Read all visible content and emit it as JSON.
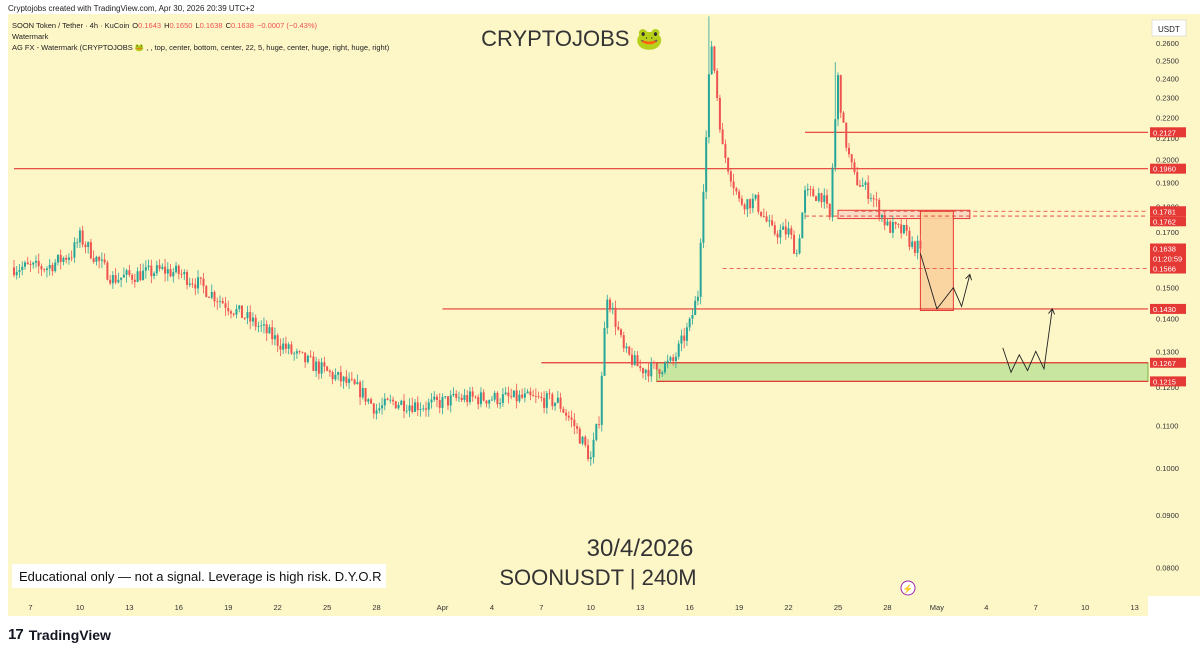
{
  "attribution": "Cryptojobs created with TradingView.com, Apr 30, 2026 20:39 UTC+2",
  "legend": {
    "symbol_line": "SOON Token / Tether · 4h · KuCoin",
    "o_label": "O",
    "o_value": "0.1643",
    "h_label": "H",
    "h_value": "0.1650",
    "l_label": "L",
    "l_value": "0.1638",
    "c_label": "C",
    "c_value": "0.1638",
    "change": "−0.0007 (−0.43%)",
    "indicator1": "Watermark",
    "indicator2": "AG FX - Watermark (CRYPTOJOBS 🐸 , , top, center, bottom, center, 22, 5, huge, center, huge, right, huge, right)"
  },
  "watermark": {
    "brand": "CRYPTOJOBS 🐸",
    "date": "30/4/2026",
    "pair": "SOONUSDT | 240M"
  },
  "disclaimer": "Educational only — not a signal. Leverage is high risk. D.Y.O.R",
  "currency_label": "USDT",
  "footer_brand": "TradingView",
  "colors": {
    "bg": "#fdf6c7",
    "up": "#26a69a",
    "down": "#ef5350",
    "level": "#e53935",
    "zone_green": "#c8e6a0",
    "zone_orange": "#fbd29c"
  },
  "chart_data": {
    "type": "candlestick",
    "symbol": "SOONUSDT",
    "timeframe": "240M",
    "ylim": [
      0.075,
      0.2775
    ],
    "y_ticks": [
      "0.0800",
      "0.0900",
      "0.1000",
      "0.1100",
      "0.1200",
      "0.1300",
      "0.1400",
      "0.1500",
      "0.1600",
      "0.1700",
      "0.1800",
      "0.1900",
      "0.2000",
      "0.2100",
      "0.2200",
      "0.2300",
      "0.2400",
      "0.2500",
      "0.2600",
      "0.2700"
    ],
    "x_ticks": [
      "7",
      "10",
      "13",
      "16",
      "19",
      "22",
      "25",
      "28",
      "Apr",
      "4",
      "7",
      "10",
      "13",
      "16",
      "19",
      "22",
      "25",
      "28",
      "May",
      "4",
      "7",
      "10",
      "13"
    ],
    "price_markers": [
      {
        "label": "0.2127",
        "color": "#e53935"
      },
      {
        "label": "0.1960",
        "color": "#e53935"
      },
      {
        "label": "0.1781",
        "color": "#e53935"
      },
      {
        "label": "0.1762",
        "color": "#e53935"
      },
      {
        "label": "0.1638",
        "color": "#e53935"
      },
      {
        "label": "01:20:59",
        "color": "#e53935"
      },
      {
        "label": "0.1638",
        "color": "#333333"
      },
      {
        "label": "0.1566",
        "color": "#e53935"
      },
      {
        "label": "0.1430",
        "color": "#e53935"
      },
      {
        "label": "0.1267",
        "color": "#e53935"
      },
      {
        "label": "0.1215",
        "color": "#e53935"
      }
    ],
    "levels": [
      {
        "price": 0.196,
        "from": "Mar 6",
        "to": "May 16",
        "style": "solid"
      },
      {
        "price": 0.2127,
        "from": "Apr 23",
        "to": "May 16",
        "style": "solid"
      },
      {
        "price": 0.143,
        "from": "Apr 1",
        "to": "May 16",
        "style": "solid"
      },
      {
        "price": 0.1267,
        "from": "Apr 7",
        "to": "May 16",
        "style": "solid"
      },
      {
        "price": 0.1215,
        "from": "Apr 14",
        "to": "May 16",
        "style": "solid"
      },
      {
        "price": 0.1566,
        "from": "Apr 18",
        "to": "May 16",
        "style": "dashed"
      },
      {
        "price": 0.1762,
        "from": "Apr 23",
        "to": "May 16",
        "style": "dashed"
      },
      {
        "price": 0.1781,
        "from": "Apr 26",
        "to": "May 16",
        "style": "dashed"
      }
    ],
    "zones": [
      {
        "kind": "green",
        "price_low": 0.1215,
        "price_high": 0.1267,
        "from": "Apr 14",
        "to": "May 16"
      },
      {
        "kind": "red-outline",
        "price_low": 0.1752,
        "price_high": 0.1785,
        "from": "Apr 25",
        "to": "May 3"
      },
      {
        "kind": "orange",
        "price_low": 0.1425,
        "price_high": 0.1781,
        "from": "Apr 30",
        "to": "May 2"
      }
    ],
    "projections": [
      [
        [
          "Apr 30",
          0.162
        ],
        [
          "May 1",
          0.143
        ],
        [
          "May 2",
          0.15
        ],
        [
          "May 2.5",
          0.1438
        ],
        [
          "May 3",
          0.1545
        ]
      ],
      [
        [
          "May 5",
          0.131
        ],
        [
          "May 5.5",
          0.124
        ],
        [
          "May 6",
          0.129
        ],
        [
          "May 6.5",
          0.1245
        ],
        [
          "May 7",
          0.13
        ],
        [
          "May 7.5",
          0.125
        ],
        [
          "May 8",
          0.143
        ]
      ]
    ],
    "candles_summary": "~294 four-hour candles from Mar 6 to Apr 30 2026: drift from 0.158 down to ~0.101 (Apr 10), spike to 0.276 (Apr 17), second peak 0.249 (Apr 24), then decline to close 0.1638",
    "anchors": [
      [
        "Mar 6",
        0.157
      ],
      [
        "Mar 8",
        0.157
      ],
      [
        "Mar 9.5",
        0.162
      ],
      [
        "Mar 10",
        0.168
      ],
      [
        "Mar 11",
        0.16
      ],
      [
        "Mar 12",
        0.153
      ],
      [
        "Mar 14",
        0.155
      ],
      [
        "Mar 15",
        0.156
      ],
      [
        "Mar 16",
        0.155
      ],
      [
        "Mar 17",
        0.152
      ],
      [
        "Mar 19",
        0.144
      ],
      [
        "Mar 21",
        0.137
      ],
      [
        "Mar 23",
        0.129
      ],
      [
        "Mar 25",
        0.124
      ],
      [
        "Mar 27",
        0.119
      ],
      [
        "Mar 28",
        0.114
      ],
      [
        "Mar 29",
        0.116
      ],
      [
        "Mar 31",
        0.115
      ],
      [
        "Apr 2",
        0.117
      ],
      [
        "Apr 4",
        0.117
      ],
      [
        "Apr 6",
        0.117
      ],
      [
        "Apr 8",
        0.116
      ],
      [
        "Apr 9",
        0.11
      ],
      [
        "Apr 10",
        0.102
      ],
      [
        "Apr 10.5",
        0.112
      ],
      [
        "Apr 11",
        0.148
      ],
      [
        "Apr 12",
        0.13
      ],
      [
        "Apr 13",
        0.125
      ],
      [
        "Apr 14",
        0.125
      ],
      [
        "Apr 15",
        0.127
      ],
      [
        "Apr 16",
        0.138
      ],
      [
        "Apr 16.5",
        0.148
      ],
      [
        "Apr 17",
        0.21
      ],
      [
        "Apr 17.3",
        0.262
      ],
      [
        "Apr 17.7",
        0.228
      ],
      [
        "Apr 18",
        0.205
      ],
      [
        "Apr 19",
        0.182
      ],
      [
        "Apr 20",
        0.182
      ],
      [
        "Apr 21",
        0.17
      ],
      [
        "Apr 22",
        0.17
      ],
      [
        "Apr 22.5",
        0.162
      ],
      [
        "Apr 23",
        0.185
      ],
      [
        "Apr 24",
        0.185
      ],
      [
        "Apr 24.5",
        0.175
      ],
      [
        "Apr 25",
        0.24
      ],
      [
        "Apr 25.3",
        0.215
      ],
      [
        "Apr 25.7",
        0.2
      ],
      [
        "Apr 26",
        0.192
      ],
      [
        "Apr 27",
        0.185
      ],
      [
        "Apr 28",
        0.172
      ],
      [
        "Apr 29",
        0.17
      ],
      [
        "Apr 29.5",
        0.165
      ],
      [
        "Apr 30",
        0.1638
      ]
    ]
  }
}
